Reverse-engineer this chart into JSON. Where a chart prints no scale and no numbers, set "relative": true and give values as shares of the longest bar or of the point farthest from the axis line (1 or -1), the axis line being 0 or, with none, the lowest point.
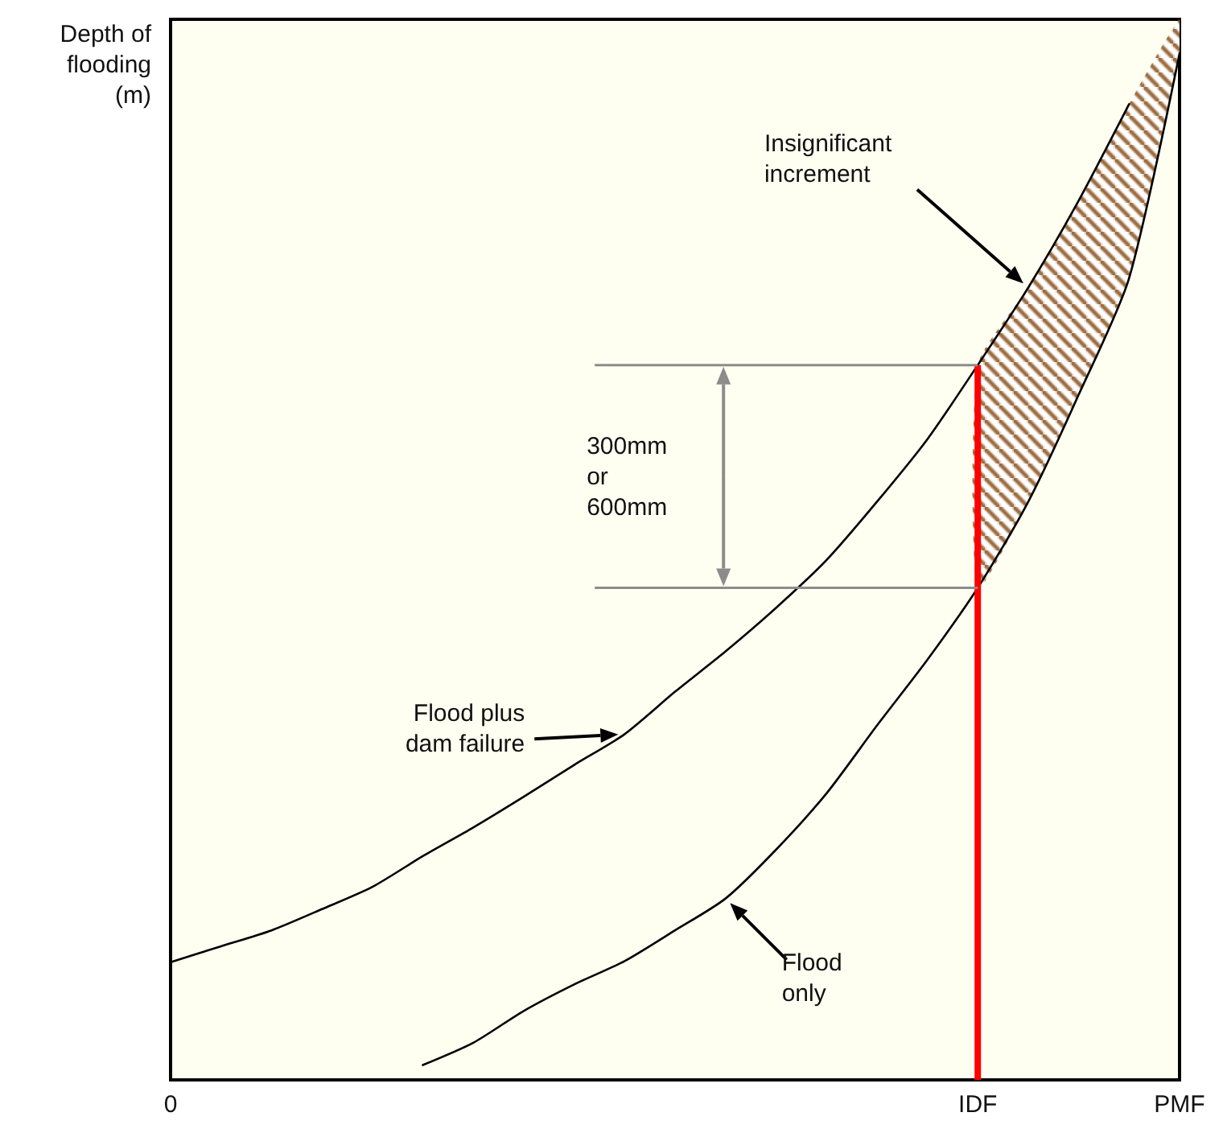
{
  "chart_data": {
    "type": "line",
    "relative": true,
    "ylabel": "Depth of flooding (m)",
    "categories": [
      "0",
      null,
      null,
      null,
      null,
      null,
      null,
      null,
      null,
      null,
      null,
      null,
      null,
      null,
      null,
      null,
      "IDF",
      null,
      null,
      null,
      "PMF"
    ],
    "grid": false,
    "marker": "none",
    "line_style": "solid",
    "series": [
      {
        "color": "#000000",
        "values": [
          0.111,
          0.126,
          0.141,
          0.161,
          0.182,
          0.211,
          0.238,
          0.267,
          0.297,
          0.326,
          0.366,
          0.404,
          0.445,
          0.49,
          0.545,
          0.604,
          0.674,
          0.747,
          0.829,
          0.92,
          null
        ]
      },
      {
        "color": "#000000",
        "values": [
          null,
          null,
          null,
          null,
          null,
          0.014,
          0.035,
          0.065,
          0.09,
          0.112,
          0.141,
          0.171,
          0.217,
          0.27,
          0.334,
          0.396,
          0.464,
          0.545,
          0.646,
          0.756,
          0.968
        ]
      },
      {
        "type": "area",
        "color": "#9b6b3e",
        "values": [
          null,
          null,
          null,
          null,
          null,
          null,
          null,
          null,
          null,
          null,
          null,
          null,
          null,
          null,
          null,
          null,
          0.674,
          0.747,
          0.829,
          0.92,
          1.0
        ]
      },
      {
        "type": "bar",
        "color": "#ff0000",
        "values": [
          null,
          null,
          null,
          null,
          null,
          null,
          null,
          null,
          null,
          null,
          null,
          null,
          null,
          null,
          null,
          null,
          0.674,
          null,
          null,
          null,
          null
        ]
      }
    ],
    "annotations": [
      "Insignificant increment",
      "300mm or 600mm",
      "Flood plus dam failure",
      "Flood only"
    ]
  }
}
